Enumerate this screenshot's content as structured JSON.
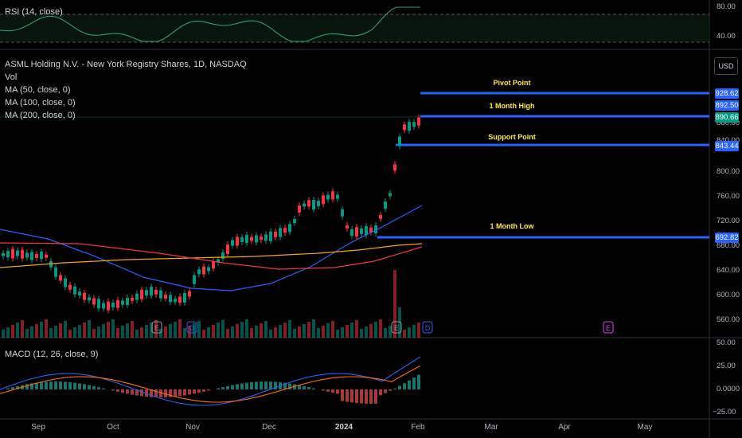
{
  "rsi": {
    "legend": "RSI (14, close)",
    "ticks": [
      "80.00",
      "40.00"
    ]
  },
  "main": {
    "title": "ASML Holding N.V. - New York Registry Shares, 1D, NASDAQ",
    "indicators": [
      "Vol",
      "MA (50, close, 0)",
      "MA (100, close, 0)",
      "MA (200, close, 0)"
    ],
    "currency_button": "USD",
    "price_ticks": [
      "880.00",
      "840.00",
      "800.00",
      "760.00",
      "720.00",
      "680.00",
      "640.00",
      "600.00",
      "560.00"
    ],
    "price_tags": [
      {
        "label": "928.62",
        "color": "#2962ff"
      },
      {
        "label": "892.50",
        "color": "#2962ff"
      },
      {
        "label": "890.66",
        "color": "#089981"
      },
      {
        "label": "843.44",
        "color": "#2962ff"
      },
      {
        "label": "692.82",
        "color": "#2962ff"
      }
    ],
    "levels": [
      {
        "label": "Pivot Point",
        "value": 928.62
      },
      {
        "label": "1 Month High",
        "value": 892.5
      },
      {
        "label": "Support Point",
        "value": 843.44
      },
      {
        "label": "1 Month Low",
        "value": 692.82
      }
    ],
    "event_markers": [
      "E",
      "D",
      "E",
      "D",
      "E"
    ]
  },
  "macd": {
    "legend": "MACD (12, 26, close, 9)",
    "ticks": [
      "50.00",
      "25.00",
      "0.0000",
      "−25.00"
    ]
  },
  "x_axis": {
    "labels": [
      "Sep",
      "Oct",
      "Nov",
      "Dec",
      "2024",
      "Feb",
      "Mar",
      "Apr",
      "May"
    ]
  },
  "colors": {
    "up": "#089981",
    "down": "#f23645",
    "level_line": "#2962ff",
    "level_text": "#ffeb3b",
    "ma50": "#2962ff",
    "ma100": "#f7a21b",
    "ma200": "#f23645"
  }
}
